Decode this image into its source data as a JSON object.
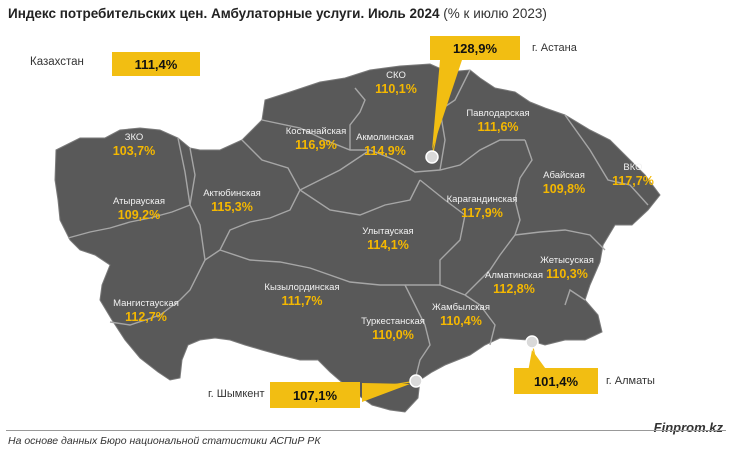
{
  "title": {
    "main": "Индекс потребительских цен. Амбулаторные услуги. Июль 2024",
    "sub": "(% к июлю 2023)"
  },
  "national": {
    "label": "Казахстан",
    "value": "111,4%"
  },
  "cities": {
    "astana": {
      "label": "г. Астана",
      "value": "128,9%"
    },
    "shymkent": {
      "label": "г. Шымкент",
      "value": "107,1%"
    },
    "almaty": {
      "label": "г. Алматы",
      "value": "101,4%"
    }
  },
  "regions": [
    {
      "name": "СКО",
      "value": "110,1%"
    },
    {
      "name": "Костанайская",
      "value": "116,9%"
    },
    {
      "name": "Акмолинская",
      "value": "114,9%"
    },
    {
      "name": "Павлодарская",
      "value": "111,6%"
    },
    {
      "name": "ЗКО",
      "value": "103,7%"
    },
    {
      "name": "Атырауская",
      "value": "109,2%"
    },
    {
      "name": "Актюбинская",
      "value": "115,3%"
    },
    {
      "name": "Карагандинская",
      "value": "117,9%"
    },
    {
      "name": "Абайская",
      "value": "109,8%"
    },
    {
      "name": "ВКО",
      "value": "117,7%"
    },
    {
      "name": "Улытауская",
      "value": "114,1%"
    },
    {
      "name": "Жетысуская",
      "value": "110,3%"
    },
    {
      "name": "Алматинская",
      "value": "112,8%"
    },
    {
      "name": "Кызылординская",
      "value": "111,7%"
    },
    {
      "name": "Мангистауская",
      "value": "112,7%"
    },
    {
      "name": "Туркестанская",
      "value": "110,0%"
    },
    {
      "name": "Жамбылская",
      "value": "110,4%"
    }
  ],
  "colors": {
    "map_fill": "#595959",
    "border": "#a6a6a6",
    "accent": "#f2be12",
    "value_text": "#f5b800"
  },
  "footer": {
    "source": "На основе данных Бюро национальной статистики АСПиР РК",
    "brand": "Finprom.kz"
  }
}
